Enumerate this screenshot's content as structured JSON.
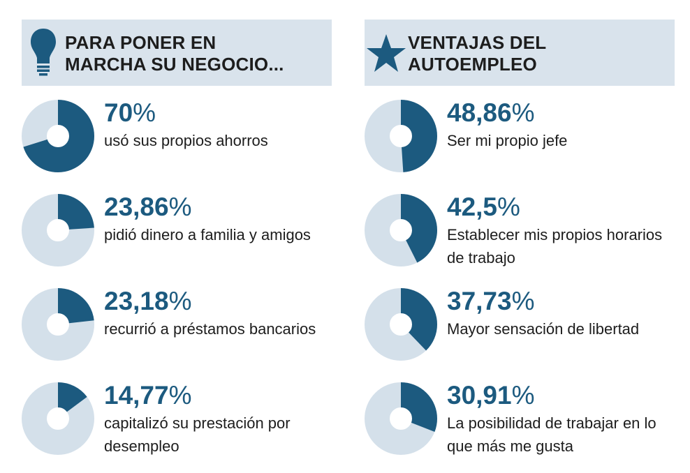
{
  "colors": {
    "accent": "#1c5a7f",
    "track": "#d4e0ea",
    "header_bg": "#d9e3ec"
  },
  "left": {
    "icon": "lightbulb-icon",
    "title_line1": "PARA PONER EN",
    "title_line2": "MARCHA SU NEGOCIO...",
    "items": [
      {
        "value": "70",
        "symbol": "%",
        "desc": "usó sus propios ahorros"
      },
      {
        "value": "23,86",
        "symbol": "%",
        "desc": "pidió dinero a familia y amigos"
      },
      {
        "value": "23,18",
        "symbol": "%",
        "desc": "recurrió a préstamos bancarios"
      },
      {
        "value": "14,77",
        "symbol": "%",
        "desc": "capitalizó su prestación por desempleo"
      }
    ]
  },
  "right": {
    "icon": "star-icon",
    "title_line1": "VENTAJAS DEL",
    "title_line2": "AUTOEMPLEO",
    "items": [
      {
        "value": "48,86",
        "symbol": "%",
        "desc": "Ser mi propio jefe"
      },
      {
        "value": "42,5",
        "symbol": "%",
        "desc": "Establecer mis propios horarios de trabajo"
      },
      {
        "value": "37,73",
        "symbol": "%",
        "desc": "Mayor sensación de libertad"
      },
      {
        "value": "30,91",
        "symbol": "%",
        "desc": "La posibilidad de trabajar en lo que más me gusta"
      }
    ]
  },
  "chart_data": [
    {
      "type": "pie",
      "title": "PARA PONER EN MARCHA SU NEGOCIO...",
      "categories": [
        "usó sus propios ahorros",
        "pidió dinero a familia y amigos",
        "recurrió a préstamos bancarios",
        "capitalizó su prestación por desempleo"
      ],
      "values": [
        70,
        23.86,
        23.18,
        14.77
      ]
    },
    {
      "type": "pie",
      "title": "VENTAJAS DEL AUTOEMPLEO",
      "categories": [
        "Ser mi propio jefe",
        "Establecer mis propios horarios de trabajo",
        "Mayor sensación de libertad",
        "La posibilidad de trabajar en lo que más me gusta"
      ],
      "values": [
        48.86,
        42.5,
        37.73,
        30.91
      ]
    }
  ]
}
